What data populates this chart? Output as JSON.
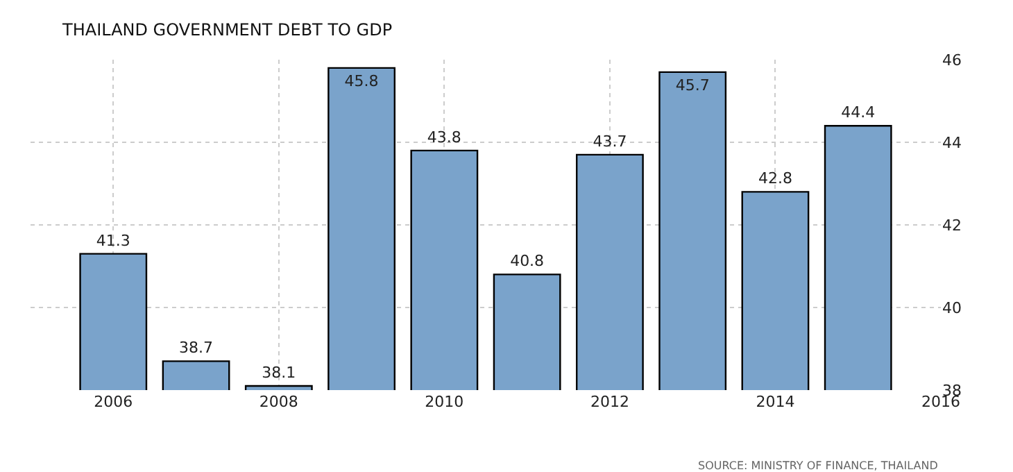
{
  "chart_data": {
    "type": "bar",
    "title": "THAILAND GOVERNMENT DEBT TO GDP",
    "x": [
      2006,
      2007,
      2008,
      2009,
      2010,
      2011,
      2012,
      2013,
      2014,
      2015
    ],
    "values": [
      41.3,
      38.7,
      38.1,
      45.8,
      43.8,
      40.8,
      43.7,
      45.7,
      42.8,
      44.4
    ],
    "color": "#7aa3cb",
    "xlim": [
      2005,
      2016
    ],
    "xticks": [
      2006,
      2008,
      2010,
      2012,
      2014,
      2016
    ],
    "ylim": [
      38,
      46
    ],
    "yticks": [
      38,
      40,
      42,
      44,
      46
    ],
    "grid": true,
    "data_labels": true,
    "annotations": [
      "SOURCE: MINISTRY OF FINANCE, THAILAND"
    ]
  }
}
